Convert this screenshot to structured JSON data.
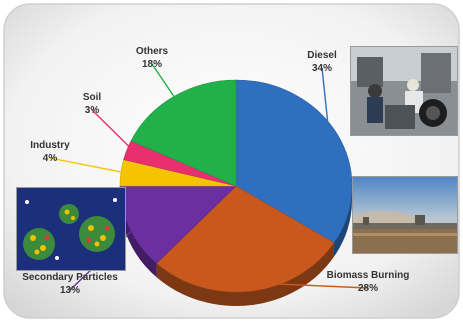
{
  "chart_data": {
    "type": "pie",
    "slices": [
      {
        "name": "Diesel",
        "value": 34,
        "label": "34%",
        "color": "#2f6fbf"
      },
      {
        "name": "Biomass Burning",
        "value": 28,
        "label": "28%",
        "color": "#c8581e"
      },
      {
        "name": "Secondary Particles",
        "value": 13,
        "label": "13%",
        "color": "#6b2fa0"
      },
      {
        "name": "Industry",
        "value": 4,
        "label": "4%",
        "color": "#f5c400"
      },
      {
        "name": "Soil",
        "value": 3,
        "label": "3%",
        "color": "#e8306f"
      },
      {
        "name": "Others",
        "value": 18,
        "label": "18%",
        "color": "#22b04a"
      }
    ],
    "style": "3d-pie",
    "legend": "none",
    "label_color": "#333333"
  },
  "photos": [
    {
      "slice": "Diesel",
      "subject": "street-vehicles-photo"
    },
    {
      "slice": "Biomass Burning",
      "subject": "smoke-haze-photo"
    },
    {
      "slice": "Secondary Particles",
      "subject": "particle-illustration"
    }
  ]
}
